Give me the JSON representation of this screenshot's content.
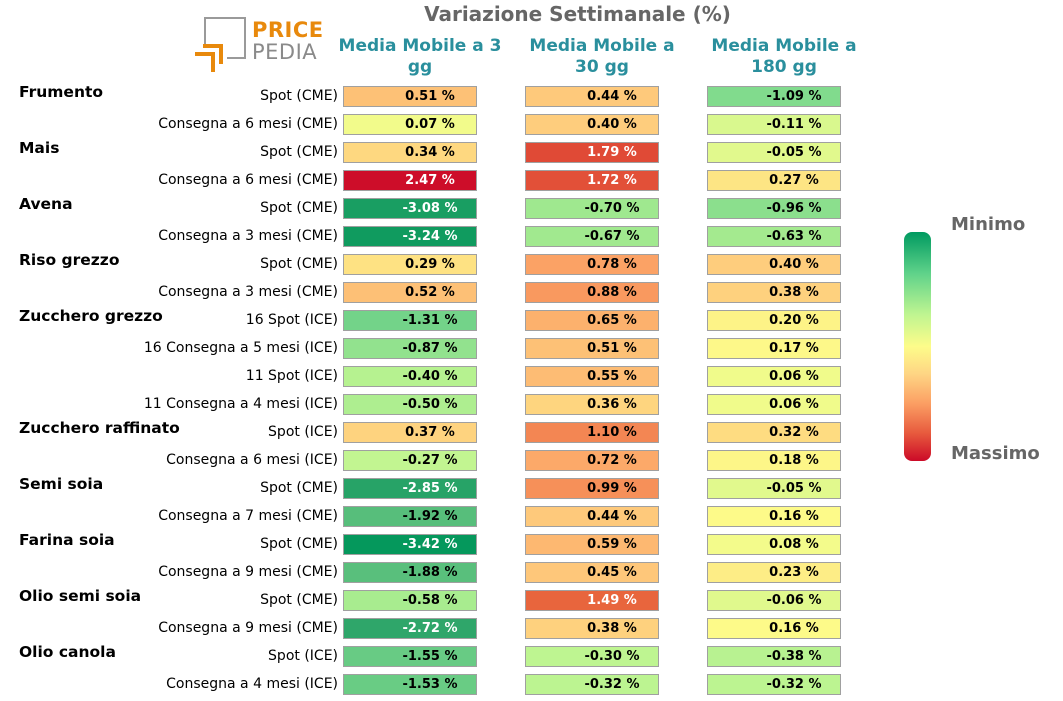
{
  "title": "Variazione Settimanale (%)",
  "logo": {
    "line1": "PRICE",
    "line2": "PEDIA"
  },
  "columns": [
    "Media Mobile a 3 gg",
    "Media Mobile a 30 gg",
    "Media Mobile a 180 gg"
  ],
  "legend": {
    "min_label": "Minimo",
    "max_label": "Massimo"
  },
  "colors": {
    "header": "#2a8f9d",
    "title": "#666666",
    "low": "#009a60",
    "mid": "#fdfc8a",
    "high": "#cc0a28"
  },
  "chart_data": {
    "type": "table",
    "groups": [
      {
        "name": "Frumento",
        "rows": [
          {
            "label": "Spot (CME)",
            "values": [
              0.51,
              0.44,
              -1.09
            ],
            "text": [
              "0.51 %",
              "0.44 %",
              "-1.09 %"
            ]
          },
          {
            "label": "Consegna a 6 mesi (CME)",
            "values": [
              0.07,
              0.4,
              -0.11
            ],
            "text": [
              "0.07 %",
              "0.40 %",
              "-0.11 %"
            ]
          }
        ]
      },
      {
        "name": "Mais",
        "rows": [
          {
            "label": "Spot (CME)",
            "values": [
              0.34,
              1.79,
              -0.05
            ],
            "text": [
              "0.34 %",
              "1.79 %",
              "-0.05 %"
            ]
          },
          {
            "label": "Consegna a 6 mesi (CME)",
            "values": [
              2.47,
              1.72,
              0.27
            ],
            "text": [
              "2.47 %",
              "1.72 %",
              "0.27 %"
            ]
          }
        ]
      },
      {
        "name": "Avena",
        "rows": [
          {
            "label": "Spot (CME)",
            "values": [
              -3.08,
              -0.7,
              -0.96
            ],
            "text": [
              "-3.08 %",
              "-0.70 %",
              "-0.96 %"
            ]
          },
          {
            "label": "Consegna a 3 mesi (CME)",
            "values": [
              -3.24,
              -0.67,
              -0.63
            ],
            "text": [
              "-3.24 %",
              "-0.67 %",
              "-0.63 %"
            ]
          }
        ]
      },
      {
        "name": "Riso grezzo",
        "rows": [
          {
            "label": "Spot (CME)",
            "values": [
              0.29,
              0.78,
              0.4
            ],
            "text": [
              "0.29 %",
              "0.78 %",
              "0.40 %"
            ]
          },
          {
            "label": "Consegna a 3 mesi (CME)",
            "values": [
              0.52,
              0.88,
              0.38
            ],
            "text": [
              "0.52 %",
              "0.88 %",
              "0.38 %"
            ]
          }
        ]
      },
      {
        "name": "Zucchero grezzo",
        "rows": [
          {
            "label": "16 Spot (ICE)",
            "values": [
              -1.31,
              0.65,
              0.2
            ],
            "text": [
              "-1.31 %",
              "0.65 %",
              "0.20 %"
            ]
          },
          {
            "label": "16 Consegna a 5 mesi (ICE)",
            "values": [
              -0.87,
              0.51,
              0.17
            ],
            "text": [
              "-0.87 %",
              "0.51 %",
              "0.17 %"
            ]
          },
          {
            "label": "11 Spot (ICE)",
            "values": [
              -0.4,
              0.55,
              0.06
            ],
            "text": [
              "-0.40 %",
              "0.55 %",
              "0.06 %"
            ]
          },
          {
            "label": "11 Consegna a 4 mesi (ICE)",
            "values": [
              -0.5,
              0.36,
              0.06
            ],
            "text": [
              "-0.50 %",
              "0.36 %",
              "0.06 %"
            ]
          }
        ]
      },
      {
        "name": "Zucchero raffinato",
        "rows": [
          {
            "label": "Spot (ICE)",
            "values": [
              0.37,
              1.1,
              0.32
            ],
            "text": [
              "0.37 %",
              "1.10 %",
              "0.32 %"
            ]
          },
          {
            "label": "Consegna a 6 mesi (ICE)",
            "values": [
              -0.27,
              0.72,
              0.18
            ],
            "text": [
              "-0.27 %",
              "0.72 %",
              "0.18 %"
            ]
          }
        ]
      },
      {
        "name": "Semi soia",
        "rows": [
          {
            "label": "Spot (CME)",
            "values": [
              -2.85,
              0.99,
              -0.05
            ],
            "text": [
              "-2.85 %",
              "0.99 %",
              "-0.05 %"
            ]
          },
          {
            "label": "Consegna a 7 mesi (CME)",
            "values": [
              -1.92,
              0.44,
              0.16
            ],
            "text": [
              "-1.92 %",
              "0.44 %",
              "0.16 %"
            ]
          }
        ]
      },
      {
        "name": "Farina soia",
        "rows": [
          {
            "label": "Spot (CME)",
            "values": [
              -3.42,
              0.59,
              0.08
            ],
            "text": [
              "-3.42 %",
              "0.59 %",
              "0.08 %"
            ]
          },
          {
            "label": "Consegna a 9 mesi (CME)",
            "values": [
              -1.88,
              0.45,
              0.23
            ],
            "text": [
              "-1.88 %",
              "0.45 %",
              "0.23 %"
            ]
          }
        ]
      },
      {
        "name": "Olio semi soia",
        "rows": [
          {
            "label": "Spot (CME)",
            "values": [
              -0.58,
              1.49,
              -0.06
            ],
            "text": [
              "-0.58 %",
              "1.49 %",
              "-0.06 %"
            ]
          },
          {
            "label": "Consegna a 9 mesi (CME)",
            "values": [
              -2.72,
              0.38,
              0.16
            ],
            "text": [
              "-2.72 %",
              "0.38 %",
              "0.16 %"
            ]
          }
        ]
      },
      {
        "name": "Olio canola",
        "rows": [
          {
            "label": "Spot (ICE)",
            "values": [
              -1.55,
              -0.3,
              -0.38
            ],
            "text": [
              "-1.55 %",
              "-0.30 %",
              "-0.38 %"
            ]
          },
          {
            "label": "Consegna a 4 mesi (ICE)",
            "values": [
              -1.53,
              -0.32,
              -0.32
            ],
            "text": [
              "-1.53 %",
              "-0.32 %",
              "-0.32 %"
            ]
          }
        ]
      }
    ]
  }
}
